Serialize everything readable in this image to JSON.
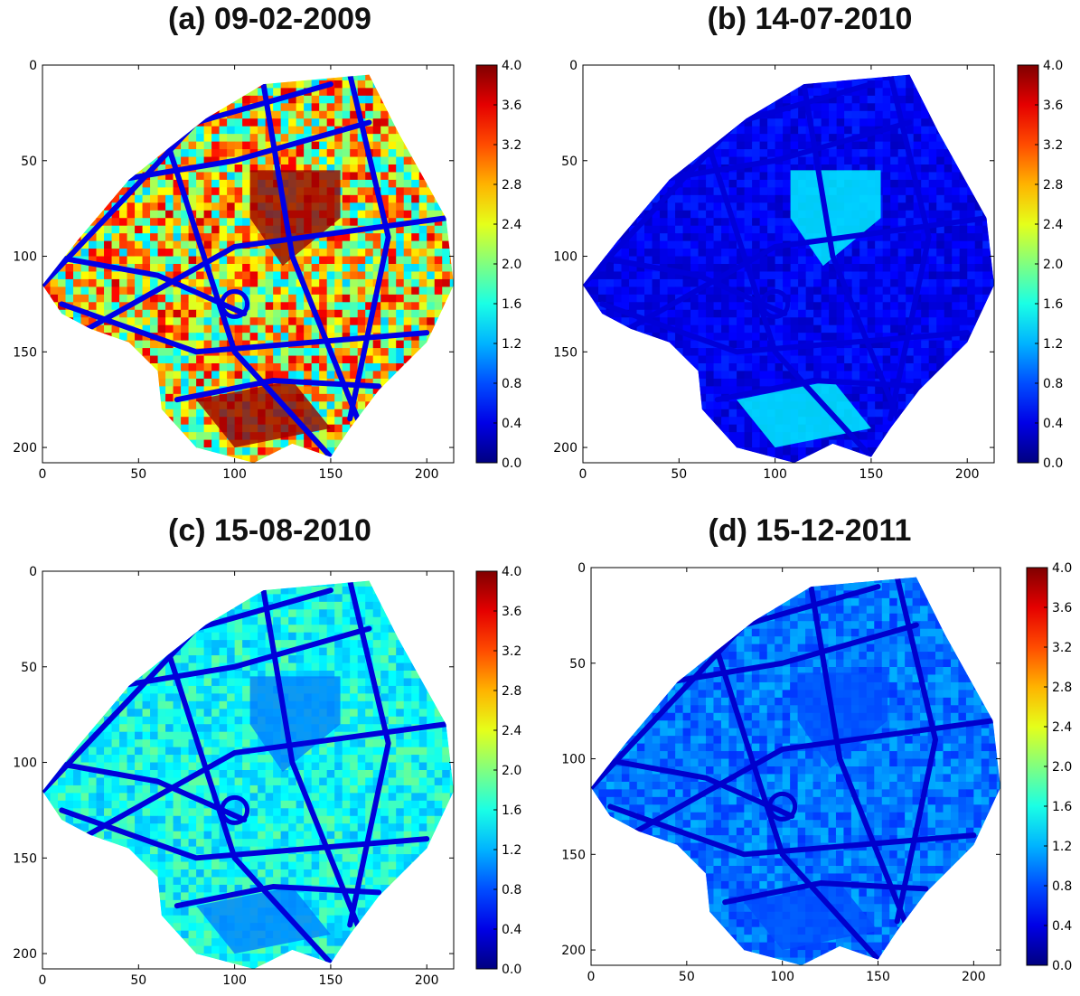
{
  "chart_data": [
    {
      "type": "heatmap",
      "title": "(a) 09-02-2009",
      "x_ticks": [
        0,
        50,
        100,
        150,
        200
      ],
      "y_ticks": [
        0,
        50,
        100,
        150,
        200
      ],
      "xlim": [
        0,
        214
      ],
      "ylim": [
        208,
        0
      ],
      "colorbar": {
        "min": 0.0,
        "max": 4.0,
        "ticks": [
          "0.0",
          "0.4",
          "0.8",
          "1.2",
          "1.6",
          "2.0",
          "2.4",
          "2.8",
          "3.2",
          "3.6",
          "4.0"
        ]
      },
      "colormap": "jet",
      "field": {
        "base": 2.5,
        "spread": 1.2,
        "hot_region_level": 3.9,
        "road_level": 0.4
      }
    },
    {
      "type": "heatmap",
      "title": "(b) 14-07-2010",
      "x_ticks": [
        0,
        50,
        100,
        150,
        200
      ],
      "y_ticks": [
        0,
        50,
        100,
        150,
        200
      ],
      "xlim": [
        0,
        214
      ],
      "ylim": [
        208,
        0
      ],
      "colorbar": {
        "min": 0.0,
        "max": 4.0,
        "ticks": [
          "0.0",
          "0.4",
          "0.8",
          "1.2",
          "1.6",
          "2.0",
          "2.4",
          "2.8",
          "3.2",
          "3.6",
          "4.0"
        ]
      },
      "colormap": "jet",
      "field": {
        "base": 0.45,
        "spread": 0.2,
        "hot_region_level": 1.5,
        "road_level": 0.35
      }
    },
    {
      "type": "heatmap",
      "title": "(c) 15-08-2010",
      "x_ticks": [
        0,
        50,
        100,
        150,
        200
      ],
      "y_ticks": [
        0,
        50,
        100,
        150,
        200
      ],
      "xlim": [
        0,
        214
      ],
      "ylim": [
        208,
        0
      ],
      "colorbar": {
        "min": 0.0,
        "max": 4.0,
        "ticks": [
          "0.0",
          "0.4",
          "0.8",
          "1.2",
          "1.6",
          "2.0",
          "2.4",
          "2.8",
          "3.2",
          "3.6",
          "4.0"
        ]
      },
      "colormap": "jet",
      "field": {
        "base": 1.55,
        "spread": 0.35,
        "hot_region_level": 1.0,
        "road_level": 0.35
      }
    },
    {
      "type": "heatmap",
      "title": "(d) 15-12-2011",
      "x_ticks": [
        0,
        50,
        100,
        150,
        200
      ],
      "y_ticks": [
        0,
        50,
        100,
        150,
        200
      ],
      "xlim": [
        0,
        214
      ],
      "ylim": [
        208,
        0
      ],
      "colorbar": {
        "min": 0.0,
        "max": 4.0,
        "ticks": [
          "0.0",
          "0.4",
          "0.8",
          "1.2",
          "1.6",
          "2.0",
          "2.4",
          "2.8",
          "3.2",
          "3.6",
          "4.0"
        ]
      },
      "colormap": "jet",
      "field": {
        "base": 0.95,
        "spread": 0.25,
        "hot_region_level": 0.8,
        "road_level": 0.3
      }
    }
  ]
}
